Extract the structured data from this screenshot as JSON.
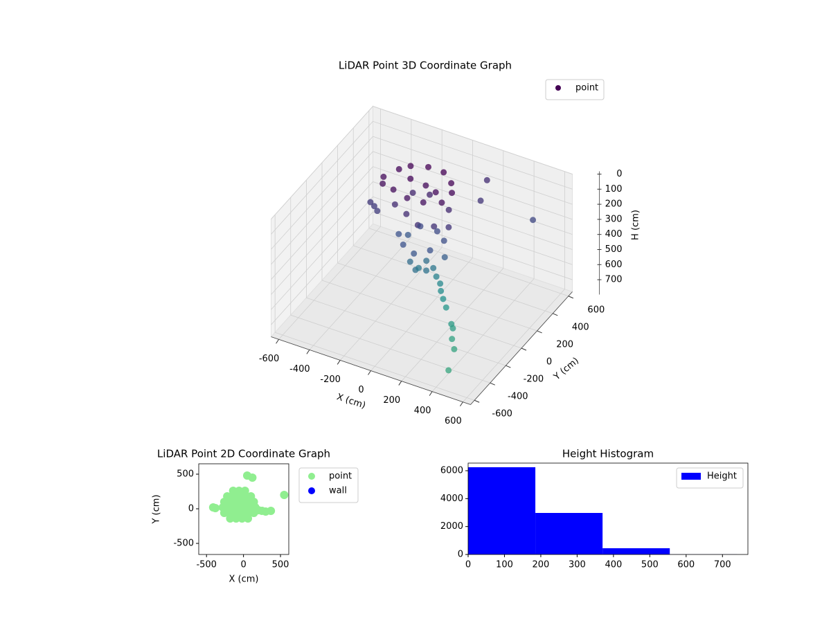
{
  "chart_data": [
    {
      "type": "scatter3d",
      "title": "LiDAR Point 3D Coordinate Graph",
      "xlabel": "X (cm)",
      "ylabel": "Y (cm)",
      "zlabel": "H (cm)",
      "xlim": [
        -650,
        650
      ],
      "ylim": [
        -650,
        650
      ],
      "zlim": [
        0,
        780
      ],
      "invert_z": true,
      "xticks": [
        -600,
        -400,
        -200,
        0,
        200,
        400,
        600
      ],
      "yticks": [
        -600,
        -400,
        -200,
        0,
        200,
        400,
        600
      ],
      "zticks": [
        0,
        100,
        200,
        300,
        400,
        500,
        600,
        700
      ],
      "grid": true,
      "colormap": "viridis",
      "legend": "upper right",
      "series": [
        {
          "name": "point",
          "color": "#440154",
          "x": [
            -300,
            -250,
            -200,
            -100,
            0,
            80,
            120,
            100,
            0,
            -100,
            -200,
            -280,
            -150,
            -50,
            30,
            -330,
            -300,
            -360,
            -200,
            -100,
            0,
            80,
            150,
            100,
            -50,
            -150,
            -150,
            -80,
            0,
            80,
            120,
            50,
            -50,
            -120,
            150,
            -50,
            0,
            50,
            20,
            60,
            -20,
            80,
            110,
            130,
            160,
            200,
            280,
            300,
            330,
            380,
            440,
            150,
            190,
            490
          ],
          "y": [
            100,
            200,
            250,
            280,
            280,
            220,
            150,
            60,
            20,
            10,
            30,
            50,
            150,
            150,
            120,
            40,
            20,
            50,
            50,
            0,
            -50,
            0,
            50,
            150,
            200,
            180,
            0,
            -80,
            -100,
            -50,
            50,
            100,
            80,
            60,
            0,
            -50,
            -80,
            -40,
            20,
            30,
            0,
            30,
            20,
            -10,
            -40,
            -80,
            -170,
            -190,
            -260,
            -330,
            -520,
            540,
            380,
            460
          ],
          "h": [
            30,
            20,
            10,
            0,
            0,
            10,
            20,
            40,
            50,
            50,
            40,
            40,
            20,
            30,
            30,
            200,
            210,
            190,
            150,
            150,
            160,
            170,
            180,
            140,
            120,
            130,
            300,
            300,
            320,
            300,
            280,
            270,
            260,
            330,
            350,
            420,
            440,
            450,
            430,
            470,
            480,
            520,
            550,
            575,
            600,
            620,
            650,
            660,
            680,
            690,
            700,
            150,
            180,
            250
          ]
        }
      ]
    },
    {
      "type": "scatter",
      "title": "LiDAR Point 2D Coordinate Graph",
      "xlabel": "X (cm)",
      "ylabel": "Y (cm)",
      "xlim": [
        -605,
        612
      ],
      "ylim": [
        -660,
        650
      ],
      "xticks": [
        -500,
        0,
        500
      ],
      "yticks": [
        -500,
        0,
        500
      ],
      "legend": "outside right",
      "series": [
        {
          "name": "point",
          "color": "#90ee90",
          "x": [
            -140,
            -60,
            20,
            -220,
            -140,
            -60,
            20,
            100,
            -260,
            -180,
            -100,
            -20,
            60,
            140,
            -280,
            -200,
            -120,
            -40,
            40,
            120,
            160,
            -260,
            -180,
            -100,
            -20,
            60,
            140,
            -180,
            -100,
            -20,
            60,
            -410,
            -380,
            50,
            120,
            550,
            250,
            300,
            370,
            200
          ],
          "y": [
            260,
            260,
            260,
            180,
            180,
            180,
            180,
            180,
            100,
            100,
            100,
            100,
            100,
            100,
            20,
            20,
            20,
            20,
            20,
            20,
            20,
            -60,
            -60,
            -60,
            -60,
            -60,
            -60,
            -140,
            -140,
            -140,
            -140,
            20,
            10,
            480,
            450,
            200,
            -30,
            -40,
            -30,
            -20
          ]
        },
        {
          "name": "wall",
          "color": "#0000ff",
          "x": [],
          "y": []
        }
      ]
    },
    {
      "type": "histogram",
      "title": "Height Histogram",
      "xlim": [
        0,
        770
      ],
      "ylim": [
        0,
        6545
      ],
      "xticks": [
        0,
        100,
        200,
        300,
        400,
        500,
        600,
        700
      ],
      "yticks": [
        0,
        2000,
        4000,
        6000
      ],
      "legend": "upper right",
      "series": [
        {
          "name": "Height",
          "color": "#0000ff",
          "bins": [
            0,
            185,
            370,
            555,
            740
          ],
          "values": [
            6250,
            2975,
            446,
            5
          ]
        }
      ]
    }
  ]
}
